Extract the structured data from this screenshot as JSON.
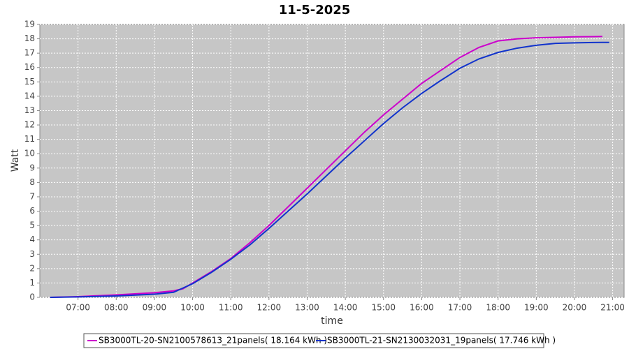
{
  "chart_data": {
    "type": "line",
    "title": "11-5-2025",
    "x_label": "time",
    "y_label": "Watt",
    "x": [
      6.27,
      7,
      8,
      9,
      9.5,
      9.75,
      10,
      10.5,
      11,
      11.5,
      12,
      12.5,
      13,
      13.5,
      14,
      14.5,
      15,
      15.5,
      16,
      16.5,
      17,
      17.5,
      18,
      18.5,
      19,
      19.5,
      20,
      20.5,
      20.73,
      20.91
    ],
    "series": [
      {
        "name": "SB3000TL-20-SN2100578613_21panels( 18.164 kWh )",
        "color": "#cc00cc",
        "values": [
          0,
          0.05,
          0.17,
          0.32,
          0.45,
          0.6,
          1.0,
          1.8,
          2.7,
          3.8,
          5.0,
          6.3,
          7.6,
          8.9,
          10.2,
          11.5,
          12.7,
          13.8,
          14.9,
          15.8,
          16.7,
          17.4,
          17.85,
          18.0,
          18.07,
          18.1,
          18.14,
          18.15,
          18.16,
          null
        ]
      },
      {
        "name": "SB3000TL-21-SN2130032031_19panels( 17.746 kWh )",
        "color": "#1133cc",
        "values": [
          0,
          0.03,
          0.1,
          0.22,
          0.35,
          0.65,
          0.95,
          1.75,
          2.65,
          3.65,
          4.8,
          6.0,
          7.2,
          8.45,
          9.7,
          10.9,
          12.1,
          13.2,
          14.2,
          15.1,
          15.95,
          16.6,
          17.05,
          17.35,
          17.55,
          17.68,
          17.72,
          17.74,
          17.75,
          17.75
        ]
      }
    ],
    "xlim": [
      6.0,
      21.3
    ],
    "xticks": [
      {
        "value": 7,
        "label": "07:00"
      },
      {
        "value": 8,
        "label": "08:00"
      },
      {
        "value": 9,
        "label": "09:00"
      },
      {
        "value": 10,
        "label": "10:00"
      },
      {
        "value": 11,
        "label": "11:00"
      },
      {
        "value": 12,
        "label": "12:00"
      },
      {
        "value": 13,
        "label": "13:00"
      },
      {
        "value": 14,
        "label": "14:00"
      },
      {
        "value": 15,
        "label": "15:00"
      },
      {
        "value": 16,
        "label": "16:00"
      },
      {
        "value": 17,
        "label": "17:00"
      },
      {
        "value": 18,
        "label": "18:00"
      },
      {
        "value": 19,
        "label": "19:00"
      },
      {
        "value": 20,
        "label": "20:00"
      },
      {
        "value": 21,
        "label": "21:00"
      }
    ],
    "ylim": [
      0,
      19
    ],
    "yticks": [
      0,
      1,
      2,
      3,
      4,
      5,
      6,
      7,
      8,
      9,
      10,
      11,
      12,
      13,
      14,
      15,
      16,
      17,
      18,
      19
    ],
    "grid": true
  }
}
